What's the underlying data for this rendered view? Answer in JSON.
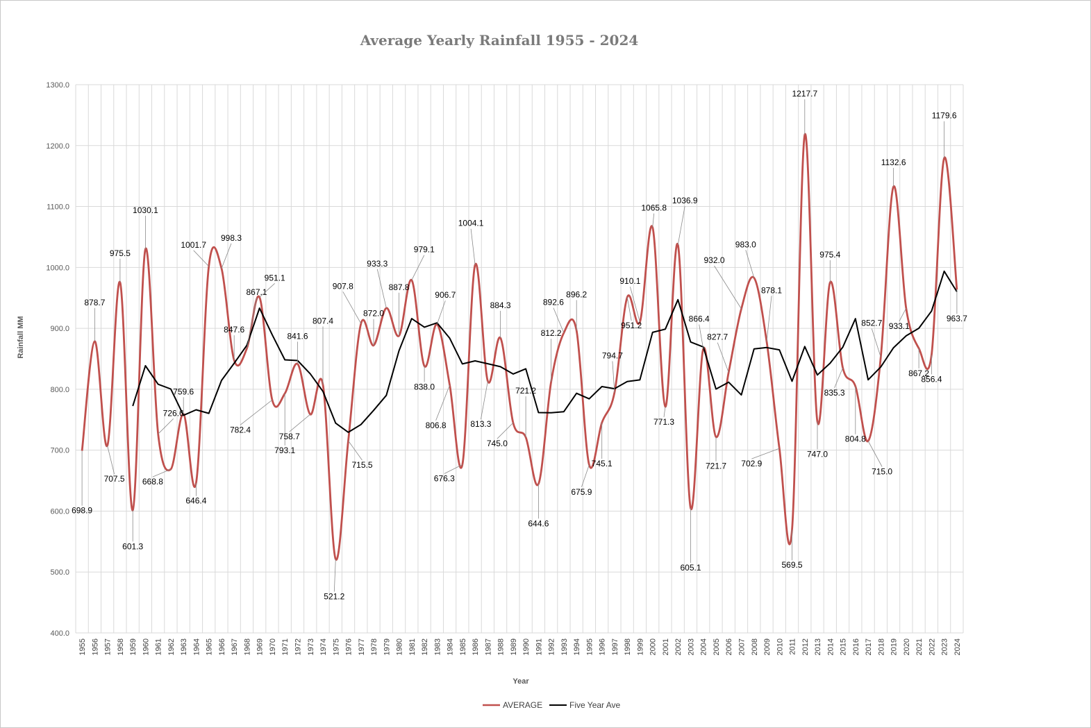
{
  "chart_data": {
    "type": "line",
    "title": "Average Yearly Rainfall 1955 - 2024",
    "xlabel": "Year",
    "ylabel": "Rainfall MM",
    "ylim": [
      400,
      1300
    ],
    "yticks": [
      "400.0",
      "500.0",
      "600.0",
      "700.0",
      "800.0",
      "900.0",
      "1000.0",
      "1100.0",
      "1200.0",
      "1300.0"
    ],
    "grid": true,
    "legend_position": "bottom",
    "x": [
      "1955",
      "1956",
      "1957",
      "1958",
      "1959",
      "1960",
      "1961",
      "1962",
      "1963",
      "1964",
      "1965",
      "1966",
      "1967",
      "1968",
      "1969",
      "1970",
      "1971",
      "1972",
      "1973",
      "1974",
      "1975",
      "1976",
      "1977",
      "1978",
      "1979",
      "1980",
      "1981",
      "1982",
      "1983",
      "1984",
      "1985",
      "1986",
      "1987",
      "1988",
      "1989",
      "1990",
      "1991",
      "1992",
      "1993",
      "1994",
      "1995",
      "1996",
      "1997",
      "1998",
      "1999",
      "2000",
      "2001",
      "2002",
      "2003",
      "2004",
      "2005",
      "2006",
      "2007",
      "2008",
      "2009",
      "2010",
      "2011",
      "2012",
      "2013",
      "2014",
      "2015",
      "2016",
      "2017",
      "2018",
      "2019",
      "2020",
      "2021",
      "2022",
      "2023",
      "2024"
    ],
    "series": [
      {
        "name": "AVERAGE",
        "color": "#c0504d",
        "values": [
          698.9,
          878.7,
          707.5,
          975.5,
          601.3,
          1030.1,
          726.6,
          668.8,
          759.6,
          646.4,
          1001.7,
          998.3,
          847.6,
          867.1,
          951.1,
          782.4,
          793.1,
          841.6,
          758.7,
          807.4,
          521.2,
          715.5,
          907.8,
          872.0,
          933.3,
          887.8,
          979.1,
          838.0,
          906.7,
          806.8,
          676.3,
          1004.1,
          813.3,
          884.3,
          745.0,
          721.2,
          644.6,
          812.2,
          892.6,
          896.2,
          675.9,
          745.1,
          794.7,
          951.2,
          910.1,
          1065.8,
          771.3,
          1036.9,
          605.1,
          866.4,
          721.7,
          827.7,
          932.0,
          983.0,
          878.1,
          702.9,
          569.5,
          1217.7,
          747.0,
          975.4,
          835.3,
          804.8,
          715.0,
          852.7,
          1132.6,
          933.1,
          867.2,
          856.4,
          1179.6,
          963.7
        ],
        "labels": [
          "698.9",
          "878.7",
          "707.5",
          "975.5",
          "601.3",
          "1030.1",
          "726.6",
          "668.8",
          "759.6",
          "646.4",
          "1001.7",
          "998.3",
          "847.6",
          "867.1",
          "951.1",
          "782.4",
          "793.1",
          "841.6",
          "758.7",
          "807.4",
          "521.2",
          "715.5",
          "907.8",
          "872.0",
          "933.3",
          "887.8",
          "979.1",
          "838.0",
          "906.7",
          "806.8",
          "676.3",
          "1004.1",
          "813.3",
          "884.3",
          "745.0",
          "721.2",
          "644.6",
          "812.2",
          "892.6",
          "896.2",
          "675.9",
          "745.1",
          "794.7",
          "951.2",
          "910.1",
          "1065.8",
          "771.3",
          "1036.9",
          "605.1",
          "866.4",
          "721.7",
          "827.7",
          "932.0",
          "983.0",
          "878.1",
          "702.9",
          "569.5",
          "1217.7",
          "747.0",
          "975.4",
          "835.3",
          "804.8",
          "715.0",
          "852.7",
          "1132.6",
          "933.1",
          "867.2",
          "856.4",
          "1179.6",
          "963.7"
        ]
      },
      {
        "name": "Five Year Ave",
        "color": "#000000",
        "values": [
          null,
          null,
          null,
          null,
          772.4,
          838.6,
          808.2,
          800.5,
          757.3,
          766.3,
          760.5,
          814.6,
          842.7,
          872.2,
          933.2,
          889.4,
          848.3,
          847.2,
          825.3,
          796.6,
          744.4,
          729.3,
          742.1,
          765.3,
          790.0,
          863.4,
          916.0,
          902.0,
          909.0,
          883.7,
          841.6,
          846.6,
          841.9,
          837.0,
          825.0,
          833.6,
          761.7,
          761.5,
          763.2,
          793.4,
          784.3,
          804.4,
          800.9,
          812.7,
          815.4,
          893.4,
          898.7,
          947.1,
          877.6,
          869.5,
          800.3,
          811.6,
          790.6,
          866.2,
          868.5,
          864.7,
          813.1,
          870.2,
          823.5,
          842.7,
          869.1,
          915.9,
          815.5,
          836.7,
          868.1,
          887.7,
          900.1,
          928.4,
          993.8,
          960.0
        ]
      }
    ]
  }
}
